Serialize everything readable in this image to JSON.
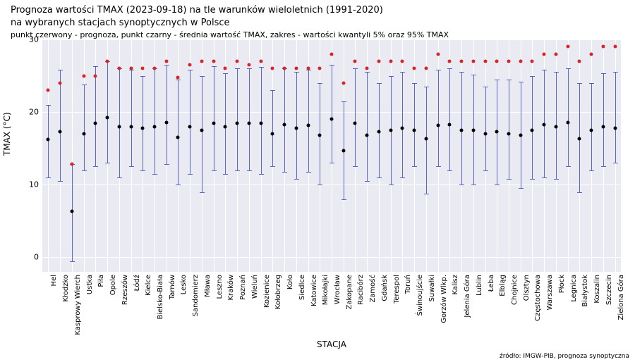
{
  "title_line1": "Prognoza wartości TMAX (2023-09-18) na tle warunków wieloletnich (1991-2020)",
  "title_line2": "na wybranych stacjach synoptycznych w Polsce",
  "subtitle": "punkt czerwony - prognoza, punkt czarny - średnia wartość TMAX, zakres - wartości kwantyli 5% oraz 95% TMAX",
  "ylabel": "TMAX (°C)",
  "xlabel": "STACJA",
  "footer": "źródło: IMGW-PIB, prognoza synoptyczna",
  "chart": {
    "type": "errorbar-scatter",
    "ylim": [
      -2,
      30
    ],
    "yticks": [
      0,
      10,
      20,
      30
    ],
    "background": "#eaeaf2",
    "grid_color": "#ffffff",
    "mean_color": "#000000",
    "forecast_color": "#d62728",
    "errbar_color": "#3b4cc0",
    "marker_size": 5,
    "stations": [
      {
        "name": "Hel",
        "mean": 16.2,
        "low": 11.0,
        "high": 21.0,
        "forecast": 23.0
      },
      {
        "name": "Kłodzko",
        "mean": 17.3,
        "low": 10.5,
        "high": 25.8,
        "forecast": 24.0
      },
      {
        "name": "Kasprowy Wierch",
        "mean": 6.3,
        "low": -0.5,
        "high": 12.8,
        "forecast": 12.8
      },
      {
        "name": "Ustka",
        "mean": 17.0,
        "low": 12.0,
        "high": 23.8,
        "forecast": 25.0
      },
      {
        "name": "Piła",
        "mean": 18.5,
        "low": 12.5,
        "high": 26.3,
        "forecast": 25.0
      },
      {
        "name": "Opole",
        "mean": 19.2,
        "low": 13.0,
        "high": 27.0,
        "forecast": 27.0
      },
      {
        "name": "Rzeszów",
        "mean": 18.0,
        "low": 11.0,
        "high": 26.0,
        "forecast": 26.0
      },
      {
        "name": "Łódź",
        "mean": 18.0,
        "low": 12.5,
        "high": 25.8,
        "forecast": 26.0
      },
      {
        "name": "Kielce",
        "mean": 17.8,
        "low": 12.0,
        "high": 25.0,
        "forecast": 26.0
      },
      {
        "name": "Bielsko-Biała",
        "mean": 18.0,
        "low": 11.5,
        "high": 26.0,
        "forecast": 26.0
      },
      {
        "name": "Tarnów",
        "mean": 18.6,
        "low": 12.8,
        "high": 26.5,
        "forecast": 27.0
      },
      {
        "name": "Lesko",
        "mean": 16.5,
        "low": 10.0,
        "high": 24.5,
        "forecast": 24.8
      },
      {
        "name": "Sandomierz",
        "mean": 18.0,
        "low": 11.5,
        "high": 25.8,
        "forecast": 26.5
      },
      {
        "name": "Mława",
        "mean": 17.5,
        "low": 9.0,
        "high": 25.0,
        "forecast": 27.0
      },
      {
        "name": "Leszno",
        "mean": 18.5,
        "low": 12.0,
        "high": 26.3,
        "forecast": 27.0
      },
      {
        "name": "Kraków",
        "mean": 18.0,
        "low": 11.5,
        "high": 25.3,
        "forecast": 26.0
      },
      {
        "name": "Poznań",
        "mean": 18.5,
        "low": 12.0,
        "high": 26.0,
        "forecast": 27.0
      },
      {
        "name": "Wieluń",
        "mean": 18.5,
        "low": 12.0,
        "high": 26.0,
        "forecast": 26.5
      },
      {
        "name": "Kozienice",
        "mean": 18.5,
        "low": 11.5,
        "high": 26.2,
        "forecast": 27.0
      },
      {
        "name": "Kołobrzeg",
        "mean": 17.0,
        "low": 12.5,
        "high": 23.0,
        "forecast": 26.0
      },
      {
        "name": "Koło",
        "mean": 18.3,
        "low": 11.8,
        "high": 26.0,
        "forecast": 26.0
      },
      {
        "name": "Siedlce",
        "mean": 17.8,
        "low": 10.8,
        "high": 25.5,
        "forecast": 26.0
      },
      {
        "name": "Katowice",
        "mean": 18.2,
        "low": 11.8,
        "high": 25.8,
        "forecast": 26.0
      },
      {
        "name": "Mikołajki",
        "mean": 16.8,
        "low": 10.0,
        "high": 24.0,
        "forecast": 26.0
      },
      {
        "name": "Wrocław",
        "mean": 19.0,
        "low": 13.0,
        "high": 26.5,
        "forecast": 28.0
      },
      {
        "name": "Zakopane",
        "mean": 14.7,
        "low": 8.0,
        "high": 21.5,
        "forecast": 24.0
      },
      {
        "name": "Racibórz",
        "mean": 18.5,
        "low": 12.5,
        "high": 26.0,
        "forecast": 27.0
      },
      {
        "name": "Zamość",
        "mean": 16.8,
        "low": 10.5,
        "high": 25.5,
        "forecast": 26.0
      },
      {
        "name": "Gdańsk",
        "mean": 17.3,
        "low": 11.0,
        "high": 24.0,
        "forecast": 27.0
      },
      {
        "name": "Terespol",
        "mean": 17.5,
        "low": 10.0,
        "high": 25.0,
        "forecast": 27.0
      },
      {
        "name": "Toruń",
        "mean": 17.8,
        "low": 11.0,
        "high": 25.5,
        "forecast": 27.0
      },
      {
        "name": "Świnoujście",
        "mean": 17.5,
        "low": 12.5,
        "high": 24.0,
        "forecast": 26.0
      },
      {
        "name": "Suwałki",
        "mean": 16.3,
        "low": 8.8,
        "high": 23.5,
        "forecast": 26.0
      },
      {
        "name": "Gorzów Wlkp.",
        "mean": 18.2,
        "low": 12.5,
        "high": 25.8,
        "forecast": 28.0
      },
      {
        "name": "Kalisz",
        "mean": 18.3,
        "low": 12.0,
        "high": 26.0,
        "forecast": 27.0
      },
      {
        "name": "Jelenia Góra",
        "mean": 17.5,
        "low": 10.0,
        "high": 25.5,
        "forecast": 27.0
      },
      {
        "name": "Lublin",
        "mean": 17.5,
        "low": 10.0,
        "high": 25.2,
        "forecast": 27.0
      },
      {
        "name": "Łeba",
        "mean": 17.0,
        "low": 12.0,
        "high": 23.5,
        "forecast": 27.0
      },
      {
        "name": "Elbląg",
        "mean": 17.3,
        "low": 10.0,
        "high": 24.5,
        "forecast": 27.0
      },
      {
        "name": "Chojnice",
        "mean": 17.0,
        "low": 10.8,
        "high": 24.5,
        "forecast": 27.0
      },
      {
        "name": "Olsztyn",
        "mean": 16.8,
        "low": 9.5,
        "high": 24.2,
        "forecast": 27.0
      },
      {
        "name": "Częstochowa",
        "mean": 17.5,
        "low": 10.8,
        "high": 25.0,
        "forecast": 27.0
      },
      {
        "name": "Warszawa",
        "mean": 18.3,
        "low": 11.0,
        "high": 25.8,
        "forecast": 28.0
      },
      {
        "name": "Płock",
        "mean": 18.0,
        "low": 10.8,
        "high": 25.5,
        "forecast": 28.0
      },
      {
        "name": "Legnica",
        "mean": 18.6,
        "low": 12.5,
        "high": 26.0,
        "forecast": 29.0
      },
      {
        "name": "Białystok",
        "mean": 16.3,
        "low": 9.0,
        "high": 24.0,
        "forecast": 27.0
      },
      {
        "name": "Koszalin",
        "mean": 17.5,
        "low": 12.0,
        "high": 24.0,
        "forecast": 28.0
      },
      {
        "name": "Szczecin",
        "mean": 18.0,
        "low": 12.5,
        "high": 25.3,
        "forecast": 29.0
      },
      {
        "name": "Zielona Góra",
        "mean": 17.8,
        "low": 13.0,
        "high": 25.5,
        "forecast": 29.0
      }
    ]
  }
}
